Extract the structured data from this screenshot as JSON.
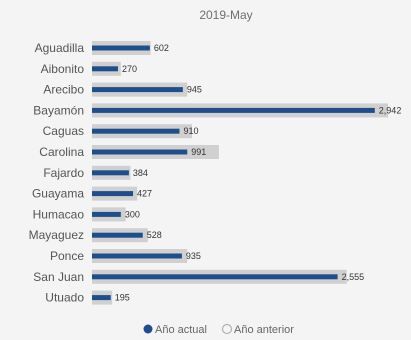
{
  "chart_data": {
    "type": "bar",
    "orientation": "horizontal",
    "title": "2019-May",
    "categories": [
      "Aguadilla",
      "Aibonito",
      "Arecibo",
      "Bayamón",
      "Caguas",
      "Carolina",
      "Fajardo",
      "Guayama",
      "Humacao",
      "Mayaguez",
      "Ponce",
      "San Juan",
      "Utuado"
    ],
    "series": [
      {
        "name": "Año actual",
        "color": "#1f4e8c",
        "values": [
          602,
          270,
          945,
          2942,
          910,
          991,
          384,
          427,
          300,
          528,
          935,
          2555,
          195
        ]
      },
      {
        "name": "Año anterior",
        "color": "#d0d0d0",
        "values": [
          610,
          300,
          990,
          3080,
          1040,
          1320,
          400,
          470,
          350,
          580,
          990,
          2650,
          210
        ]
      }
    ],
    "value_labels": [
      "602",
      "270",
      "945",
      "2,942",
      "910",
      "991",
      "384",
      "427",
      "300",
      "528",
      "935",
      "2,555",
      "195"
    ],
    "xlim": [
      0,
      3100
    ],
    "grid": false,
    "legend_position": "bottom-center"
  }
}
